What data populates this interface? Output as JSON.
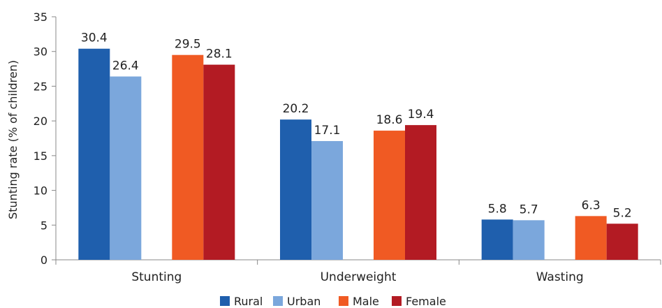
{
  "chart_data": {
    "type": "bar",
    "categories": [
      "Stunting",
      "Underweight",
      "Wasting"
    ],
    "series": [
      {
        "name": "Rural",
        "color": "#1f5fad",
        "values": [
          30.4,
          20.2,
          5.8
        ]
      },
      {
        "name": "Urban",
        "color": "#7ba7dc",
        "values": [
          26.4,
          17.1,
          5.7
        ]
      },
      {
        "name": "Male",
        "color": "#f05a23",
        "values": [
          29.5,
          18.6,
          6.3
        ]
      },
      {
        "name": "Female",
        "color": "#b31b23",
        "values": [
          28.1,
          19.4,
          5.2
        ]
      }
    ],
    "title": "",
    "xlabel": "",
    "ylabel": "Stunting rate (% of children)",
    "ylim": [
      0,
      35
    ],
    "yticks": [
      0,
      5,
      10,
      15,
      20,
      25,
      30,
      35
    ],
    "grid": false,
    "legend_position": "bottom"
  }
}
